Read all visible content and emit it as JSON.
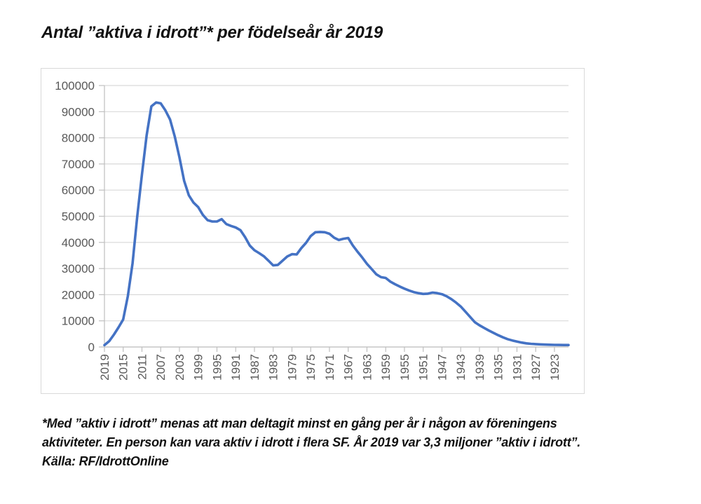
{
  "title": "Antal ”aktiva i idrott”* per födelseår år 2019",
  "footnote": {
    "line1": "*Med ”aktiv i idrott” menas att man deltagit minst en gång per år i någon av föreningens",
    "line2": "aktiviteter. En person kan vara aktiv i idrott i flera SF. År 2019 var 3,3 miljoner ”aktiv i idrott”.",
    "line3": "Källa: RF/IdrottOnline"
  },
  "chart_data": {
    "type": "line",
    "title": "Antal ”aktiva i idrott”* per födelseår år 2019",
    "xlabel": "",
    "ylabel": "",
    "ylim": [
      0,
      100000
    ],
    "y_ticks": [
      0,
      10000,
      20000,
      30000,
      40000,
      50000,
      60000,
      70000,
      80000,
      90000,
      100000
    ],
    "x_tick_labels": [
      "2019",
      "2015",
      "2011",
      "2007",
      "2003",
      "1999",
      "1995",
      "1991",
      "1987",
      "1983",
      "1979",
      "1975",
      "1971",
      "1967",
      "1963",
      "1959",
      "1955",
      "1951",
      "1947",
      "1943",
      "1939",
      "1935",
      "1931",
      "1927",
      "1923"
    ],
    "grid": "horizontal",
    "legend": "none",
    "line_color": "#4472C4",
    "gridline_color": "#d9d9d9",
    "axis_line_color": "#bfbfbf",
    "tick_label_color": "#595959",
    "x": [
      2019,
      2018,
      2017,
      2016,
      2015,
      2014,
      2013,
      2012,
      2011,
      2010,
      2009,
      2008,
      2007,
      2006,
      2005,
      2004,
      2003,
      2002,
      2001,
      2000,
      1999,
      1998,
      1997,
      1996,
      1995,
      1994,
      1993,
      1992,
      1991,
      1990,
      1989,
      1988,
      1987,
      1986,
      1985,
      1984,
      1983,
      1982,
      1981,
      1980,
      1979,
      1978,
      1977,
      1976,
      1975,
      1974,
      1973,
      1972,
      1971,
      1970,
      1969,
      1968,
      1967,
      1966,
      1965,
      1964,
      1963,
      1962,
      1961,
      1960,
      1959,
      1958,
      1957,
      1956,
      1955,
      1954,
      1953,
      1952,
      1951,
      1950,
      1949,
      1948,
      1947,
      1946,
      1945,
      1944,
      1943,
      1942,
      1941,
      1940,
      1939,
      1938,
      1937,
      1936,
      1935,
      1934,
      1933,
      1932,
      1931,
      1930,
      1929,
      1928,
      1927,
      1926,
      1925,
      1924,
      1923,
      1922,
      1921,
      1920
    ],
    "values": [
      700,
      2200,
      4700,
      7500,
      10500,
      19500,
      32000,
      50000,
      66000,
      81000,
      92000,
      93500,
      93200,
      90500,
      87000,
      80500,
      72500,
      63500,
      58000,
      55200,
      53500,
      50500,
      48500,
      48000,
      48000,
      48900,
      47000,
      46300,
      45700,
      44700,
      42000,
      38800,
      37000,
      35900,
      34700,
      33000,
      31200,
      31400,
      33000,
      34600,
      35500,
      35400,
      37800,
      39800,
      42400,
      43900,
      44000,
      43900,
      43300,
      41800,
      40900,
      41400,
      41700,
      38800,
      36400,
      34200,
      31800,
      29800,
      27800,
      26700,
      26400,
      25000,
      24000,
      23100,
      22300,
      21600,
      21000,
      20600,
      20300,
      20400,
      20800,
      20600,
      20200,
      19400,
      18300,
      17000,
      15500,
      13500,
      11500,
      9500,
      8300,
      7300,
      6300,
      5400,
      4500,
      3700,
      3000,
      2500,
      2100,
      1700,
      1400,
      1200,
      1100,
      1000,
      900,
      850,
      800,
      780,
      760,
      750
    ]
  }
}
